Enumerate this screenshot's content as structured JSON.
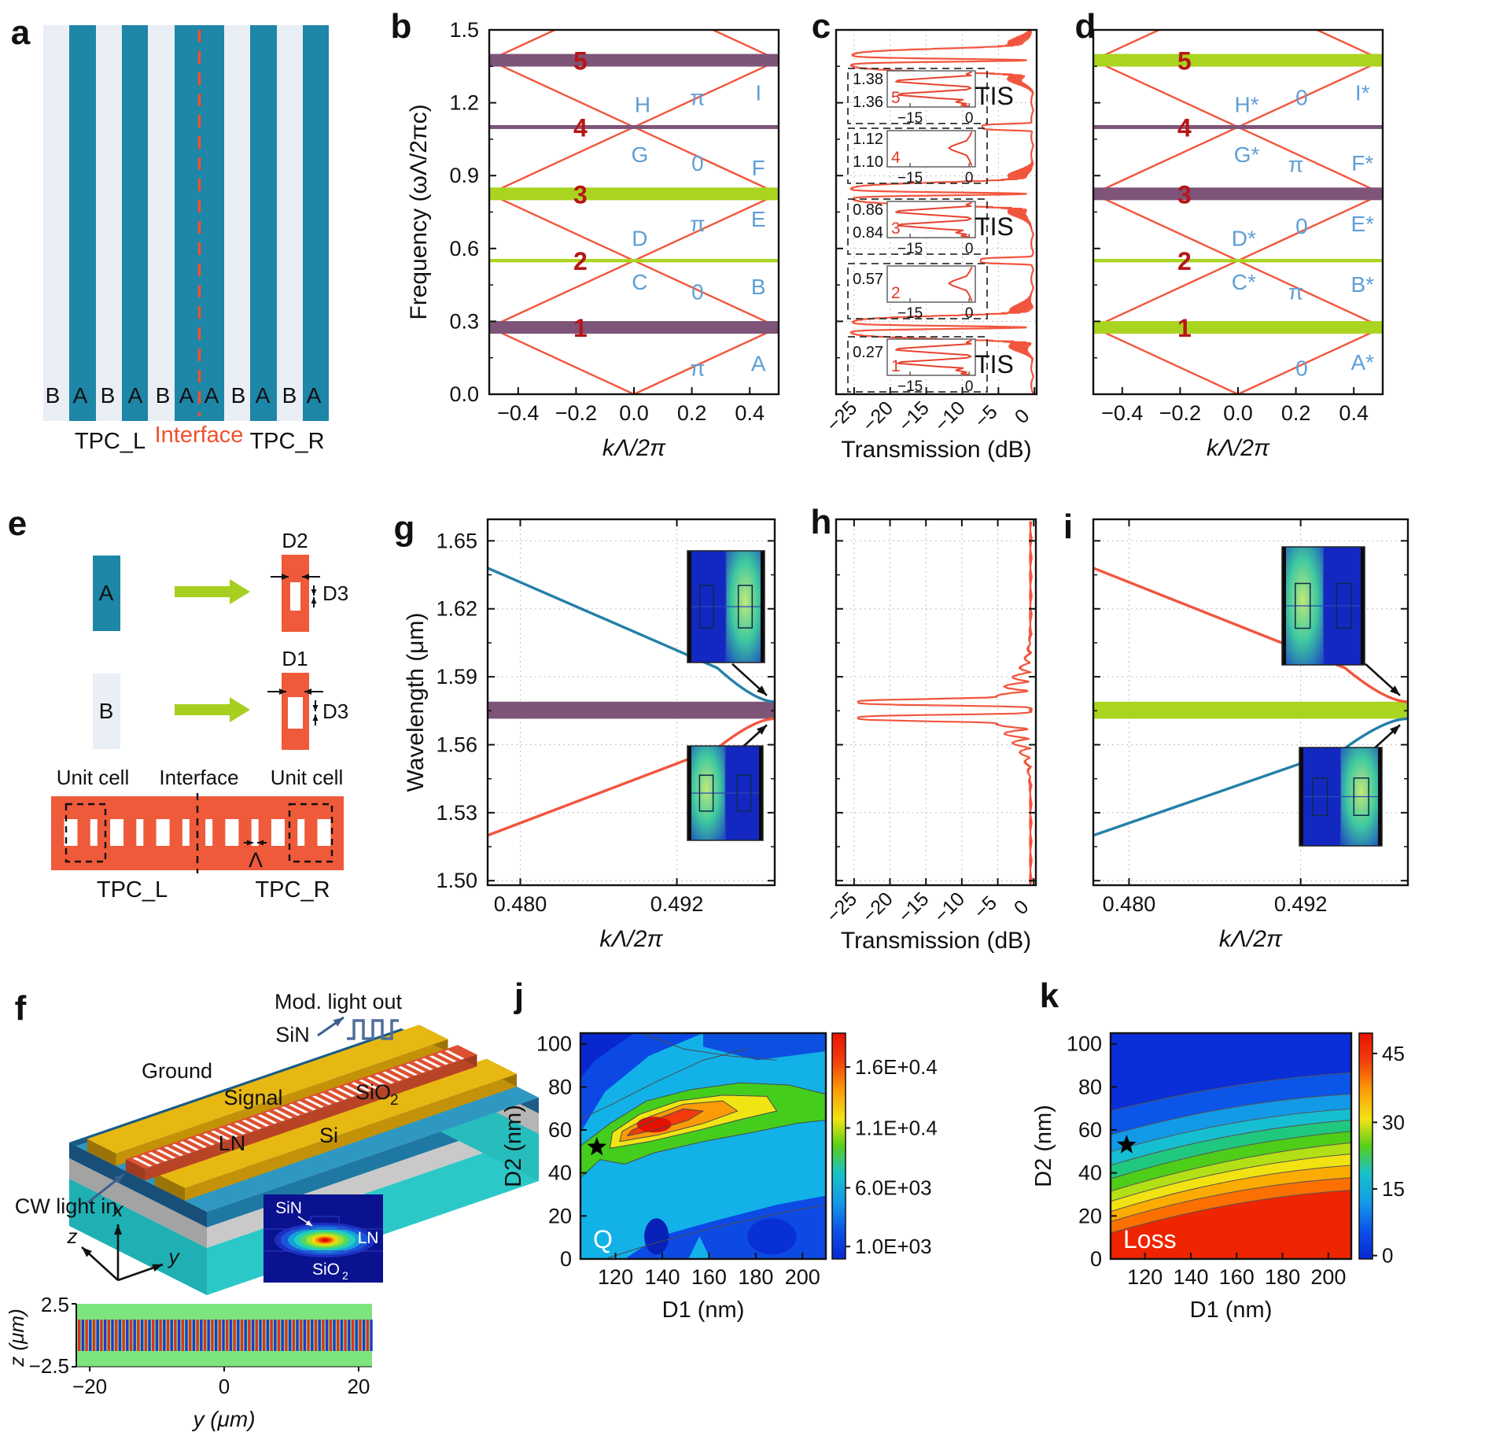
{
  "figure_type": "scientific multi-panel figure",
  "colors": {
    "ink": "#111111",
    "red_line": "#f2553d",
    "band_purple": "#7e5478",
    "band_green": "#a9d420",
    "num_red": "#b71616",
    "letter_blue": "#5f9fd6",
    "stripe_a": "#1e86a7",
    "stripe_b": "#e9eff5",
    "interface_red": "#f0512e",
    "orange": "#ee5a3a",
    "arrow_green": "#a6cf20",
    "blue_curve": "#2380a8",
    "wave_blue": "#4d6f9a",
    "grid_gray": "#c0c0c0"
  },
  "panel_letters": {
    "a": "a",
    "b": "b",
    "c": "c",
    "d": "d",
    "e": "e",
    "f": "f",
    "g": "g",
    "h": "h",
    "i": "i",
    "j": "j",
    "k": "k"
  },
  "panel_a": {
    "letters": [
      "B",
      "A",
      "B",
      "A",
      "B",
      "A",
      "A",
      "B",
      "A",
      "B",
      "A"
    ],
    "tpc_l": "TPC_L",
    "interface": "Interface",
    "tpc_r": "TPC_R"
  },
  "panel_e": {
    "label_a": "A",
    "label_b": "B",
    "d1": "D1",
    "d2": "D2",
    "d3": "D3",
    "unit_cell_left": "Unit cell",
    "interface": "Interface",
    "unit_cell_right": "Unit cell",
    "tpc_l": "TPC_L",
    "tpc_r": "TPC_R",
    "lambda": "Λ"
  },
  "panel_f": {
    "mod_light_out": "Mod. light out",
    "sin": "SiN",
    "ground": "Ground",
    "signal": "Signal",
    "sio2_main": "SiO",
    "sio2_sub": "2",
    "ln": "LN",
    "si": "Si",
    "cw_light_in": "CW light in",
    "axis_x": "x",
    "axis_y": "y",
    "axis_z": "z",
    "inset_sin": "SiN",
    "inset_ln": "LN",
    "inset_sio2_main": "SiO",
    "inset_sio2_sub": "2"
  },
  "chart_data": [
    {
      "id": "b",
      "type": "line",
      "xlabel": "kΛ/2π",
      "ylabel": "Frequency (ωΛ/2πc)",
      "xlim": [
        -0.5,
        0.5
      ],
      "ylim": [
        0,
        1.5
      ],
      "xticks": [
        "−0.4",
        "−0.2",
        "0.0",
        "0.2",
        "0.4"
      ],
      "xtick_vals": [
        -0.4,
        -0.2,
        0,
        0.2,
        0.4
      ],
      "yticks": [
        "0.0",
        "0.3",
        "0.6",
        "0.9",
        "1.2",
        "1.5"
      ],
      "ytick_vals": [
        0,
        0.3,
        0.6,
        0.9,
        1.2,
        1.5
      ],
      "fold_velocity": 0.55,
      "bands": [
        {
          "n": "1",
          "center": 0.275,
          "half": 0.026,
          "color": "purple"
        },
        {
          "n": "2",
          "center": 0.55,
          "half": 0.007,
          "color": "green"
        },
        {
          "n": "3",
          "center": 0.825,
          "half": 0.026,
          "color": "green"
        },
        {
          "n": "4",
          "center": 1.1,
          "half": 0.008,
          "color": "purple"
        },
        {
          "n": "5",
          "center": 1.375,
          "half": 0.026,
          "color": "purple"
        }
      ],
      "point_labels": [
        {
          "t": "C",
          "k": 0.02,
          "w": 0.46
        },
        {
          "t": "D",
          "k": 0.02,
          "w": 0.64
        },
        {
          "t": "G",
          "k": 0.02,
          "w": 0.985
        },
        {
          "t": "H",
          "k": 0.03,
          "w": 1.19
        },
        {
          "t": "π",
          "k": 0.22,
          "w": 1.22
        },
        {
          "t": "I",
          "k": 0.43,
          "w": 1.24
        },
        {
          "t": "0",
          "k": 0.22,
          "w": 0.95
        },
        {
          "t": "F",
          "k": 0.43,
          "w": 0.93
        },
        {
          "t": "π",
          "k": 0.22,
          "w": 0.7
        },
        {
          "t": "E",
          "k": 0.43,
          "w": 0.72
        },
        {
          "t": "0",
          "k": 0.22,
          "w": 0.42
        },
        {
          "t": "B",
          "k": 0.43,
          "w": 0.44
        },
        {
          "t": "π",
          "k": 0.22,
          "w": 0.105
        },
        {
          "t": "A",
          "k": 0.43,
          "w": 0.125
        }
      ]
    },
    {
      "id": "c",
      "type": "line",
      "xlabel": "Transmission (dB)",
      "xticks": [
        "−25",
        "−20",
        "−15",
        "−10",
        "−5",
        "0"
      ],
      "xtick_vals": [
        -25,
        -20,
        -15,
        -10,
        -5,
        0
      ],
      "xlim": [
        -27.5,
        0.3
      ],
      "ylim": [
        0,
        1.5
      ],
      "tis_label": "TIS",
      "dips": [
        {
          "center": 0.275,
          "half": 0.05,
          "depth": -25,
          "tis": true
        },
        {
          "center": 0.55,
          "half": 0.014,
          "depth": -7,
          "tis": false
        },
        {
          "center": 0.825,
          "half": 0.05,
          "depth": -25,
          "tis": true
        },
        {
          "center": 1.1,
          "half": 0.014,
          "depth": -7,
          "tis": false
        },
        {
          "center": 1.375,
          "half": 0.05,
          "depth": -25,
          "tis": true
        }
      ],
      "insets": [
        {
          "num": "5",
          "ylabels": [
            "1.38",
            "1.36"
          ],
          "xticks": [
            "−15",
            "0"
          ],
          "tis": true,
          "shape": "double"
        },
        {
          "num": "4",
          "ylabels": [
            "1.12",
            "1.10"
          ],
          "xticks": [
            "−15",
            "0"
          ],
          "tis": false,
          "shape": "shallow"
        },
        {
          "num": "3",
          "ylabels": [
            "0.86",
            "0.84"
          ],
          "xticks": [
            "−15",
            "0"
          ],
          "tis": true,
          "shape": "double"
        },
        {
          "num": "2",
          "ylabels": [
            "0.57"
          ],
          "xticks": [
            "−15",
            "0"
          ],
          "tis": false,
          "shape": "shallow"
        },
        {
          "num": "1",
          "ylabels": [
            "0.27"
          ],
          "xticks": [
            "−15",
            "0"
          ],
          "tis": true,
          "shape": "double"
        }
      ]
    },
    {
      "id": "d",
      "type": "line",
      "xlabel": "kΛ/2π",
      "xlim": [
        -0.5,
        0.5
      ],
      "ylim": [
        0,
        1.5
      ],
      "xticks": [
        "−0.4",
        "−0.2",
        "0.0",
        "0.2",
        "0.4"
      ],
      "xtick_vals": [
        -0.4,
        -0.2,
        0,
        0.2,
        0.4
      ],
      "ytick_vals": [
        0,
        0.3,
        0.6,
        0.9,
        1.2,
        1.5
      ],
      "fold_velocity": 0.55,
      "bands": [
        {
          "n": "1",
          "center": 0.275,
          "half": 0.026,
          "color": "green"
        },
        {
          "n": "2",
          "center": 0.55,
          "half": 0.007,
          "color": "green"
        },
        {
          "n": "3",
          "center": 0.825,
          "half": 0.026,
          "color": "purple"
        },
        {
          "n": "4",
          "center": 1.1,
          "half": 0.008,
          "color": "purple"
        },
        {
          "n": "5",
          "center": 1.375,
          "half": 0.026,
          "color": "green"
        }
      ],
      "point_labels": [
        {
          "t": "C*",
          "k": 0.02,
          "w": 0.46
        },
        {
          "t": "D*",
          "k": 0.02,
          "w": 0.64
        },
        {
          "t": "G*",
          "k": 0.03,
          "w": 0.985
        },
        {
          "t": "H*",
          "k": 0.03,
          "w": 1.19
        },
        {
          "t": "0",
          "k": 0.22,
          "w": 1.22
        },
        {
          "t": "I*",
          "k": 0.43,
          "w": 1.24
        },
        {
          "t": "π",
          "k": 0.2,
          "w": 0.945
        },
        {
          "t": "F*",
          "k": 0.43,
          "w": 0.95
        },
        {
          "t": "0",
          "k": 0.22,
          "w": 0.69
        },
        {
          "t": "E*",
          "k": 0.43,
          "w": 0.7
        },
        {
          "t": "π",
          "k": 0.2,
          "w": 0.42
        },
        {
          "t": "B*",
          "k": 0.43,
          "w": 0.45
        },
        {
          "t": "0",
          "k": 0.22,
          "w": 0.105
        },
        {
          "t": "A*",
          "k": 0.43,
          "w": 0.13
        }
      ]
    },
    {
      "id": "g",
      "type": "line",
      "xlabel": "kΛ/2π",
      "ylabel": "Wavelength (μm)",
      "xlim": [
        0.4775,
        0.4995
      ],
      "xticks": [
        "0.480",
        "0.492"
      ],
      "xtick_vals": [
        0.48,
        0.492
      ],
      "ylim": [
        1.498,
        1.6595
      ],
      "yticks": [
        "1.65",
        "1.62",
        "1.59",
        "1.56",
        "1.53",
        "1.50"
      ],
      "ytick_vals": [
        1.65,
        1.62,
        1.59,
        1.56,
        1.53,
        1.5
      ],
      "band": {
        "from": 1.5715,
        "to": 1.579,
        "color": "purple"
      },
      "upper_line": {
        "color": "blue",
        "start": 1.638,
        "end": 1.579
      },
      "lower_line": {
        "color": "red",
        "start": 1.52,
        "end": 1.5715
      },
      "insets": [
        {
          "position": "top",
          "bright_side": "right"
        },
        {
          "position": "bottom",
          "bright_side": "left"
        }
      ]
    },
    {
      "id": "h",
      "type": "line",
      "xlabel": "Transmission (dB)",
      "xticks": [
        "−25",
        "−20",
        "−15",
        "−10",
        "−5",
        "0"
      ],
      "xtick_vals": [
        -25,
        -20,
        -15,
        -10,
        -5,
        0
      ],
      "xlim": [
        -27.5,
        0.3
      ],
      "ylim": [
        1.498,
        1.6595
      ],
      "ytick_vals": [
        1.65,
        1.62,
        1.59,
        1.56,
        1.53,
        1.5
      ],
      "dips": [
        {
          "center": 1.5788,
          "half": 0.0016,
          "depth": -24
        },
        {
          "center": 1.5718,
          "half": 0.0016,
          "depth": -24
        }
      ]
    },
    {
      "id": "i",
      "type": "line",
      "xlabel": "kΛ/2π",
      "xlim": [
        0.4775,
        0.4995
      ],
      "xticks": [
        "0.480",
        "0.492"
      ],
      "xtick_vals": [
        0.48,
        0.492
      ],
      "ylim": [
        1.498,
        1.6595
      ],
      "ytick_vals": [
        1.65,
        1.62,
        1.59,
        1.56,
        1.53,
        1.5
      ],
      "band": {
        "from": 1.5715,
        "to": 1.579,
        "color": "green"
      },
      "upper_line": {
        "color": "red",
        "start": 1.638,
        "end": 1.579
      },
      "lower_line": {
        "color": "blue",
        "start": 1.52,
        "end": 1.5715
      },
      "insets": [
        {
          "position": "top",
          "bright_side": "left"
        },
        {
          "position": "bottom",
          "bright_side": "right"
        }
      ]
    },
    {
      "id": "j",
      "type": "heatmap",
      "xlabel": "D1 (nm)",
      "ylabel": "D2 (nm)",
      "xlim": [
        105,
        210
      ],
      "ylim": [
        0,
        105
      ],
      "xticks": [
        "120",
        "140",
        "160",
        "180",
        "200"
      ],
      "xtick_vals": [
        120,
        140,
        160,
        180,
        200
      ],
      "yticks": [
        "0",
        "20",
        "40",
        "60",
        "80",
        "100"
      ],
      "ytick_vals": [
        0,
        20,
        40,
        60,
        80,
        100
      ],
      "label": "Q",
      "star": [
        112,
        52
      ],
      "peak_region": {
        "d1": [
          125,
          175
        ],
        "d2": [
          50,
          75
        ]
      },
      "colorbar_labels": [
        "1.6E+0.4",
        "1.1E+0.4",
        "6.0E+03",
        "1.0E+03"
      ]
    },
    {
      "id": "k",
      "type": "heatmap",
      "xlabel": "D1 (nm)",
      "ylabel": "D2 (nm)",
      "xlim": [
        105,
        210
      ],
      "ylim": [
        0,
        105
      ],
      "xticks": [
        "120",
        "140",
        "160",
        "180",
        "200"
      ],
      "xtick_vals": [
        120,
        140,
        160,
        180,
        200
      ],
      "yticks": [
        "0",
        "20",
        "40",
        "60",
        "80",
        "100"
      ],
      "ytick_vals": [
        0,
        20,
        40,
        60,
        80,
        100
      ],
      "label": "Loss",
      "star": [
        112,
        53
      ],
      "colorbar_labels": [
        "45",
        "30",
        "15",
        "0"
      ]
    },
    {
      "id": "f_field",
      "type": "heatmap",
      "xlabel": "y (μm)",
      "ylabel": "z (μm)",
      "xticks": [
        "−20",
        "0",
        "20"
      ],
      "xtick_vals": [
        -20,
        0,
        20
      ],
      "yticks": [
        "2.5",
        "−2.5"
      ],
      "ytick_vals": [
        2.5,
        -2.5
      ],
      "xlim": [
        -22,
        22
      ],
      "ylim": [
        -2.5,
        2.5
      ]
    }
  ]
}
